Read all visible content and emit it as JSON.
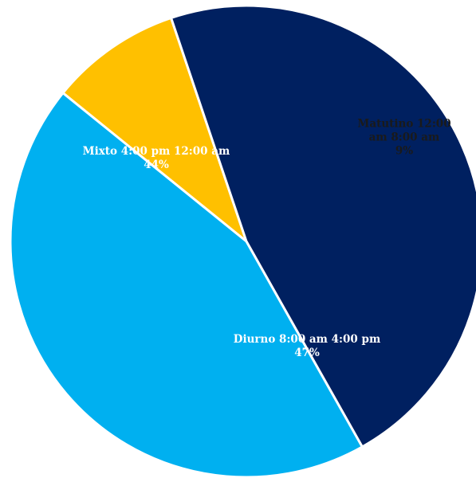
{
  "chart_data": {
    "type": "pie",
    "title": "",
    "slices": [
      {
        "label_lines": [
          "Matutino 12:00",
          "am 8:00 am"
        ],
        "value": 9,
        "value_label": "9%",
        "color": "#FFC000",
        "text_color": "#1a1a1a"
      },
      {
        "label_lines": [
          "Diurno 8:00 am 4:00 pm"
        ],
        "value": 47,
        "value_label": "47%",
        "color": "#002060",
        "text_color": "#ffffff"
      },
      {
        "label_lines": [
          "Mixto 4:00 pm 12:00 am"
        ],
        "value": 44,
        "value_label": "44%",
        "color": "#00B0F0",
        "text_color": "#ffffff"
      }
    ],
    "legend": "none"
  }
}
